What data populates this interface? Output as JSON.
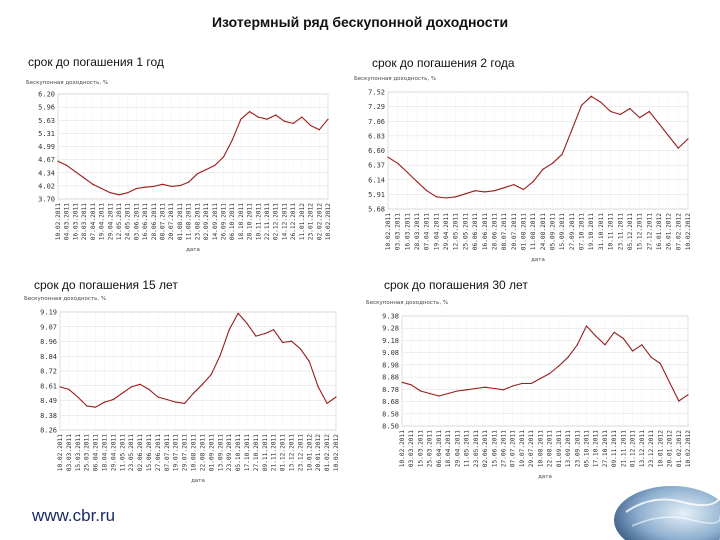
{
  "page": {
    "title": "Изотермный ряд бескупонной доходности",
    "footer": "www.cbr.ru"
  },
  "chart_data": [
    {
      "type": "line",
      "title": "срок до погашения 1 год",
      "ylabel": "Бескупонная доходность, %",
      "xlabel": "дата",
      "ylim": [
        3.7,
        6.2
      ],
      "yticks": [
        "6.20",
        "5.96",
        "5.63",
        "5.31",
        "4.99",
        "4.67",
        "4.34",
        "4.02",
        "3.70"
      ],
      "xticks": [
        "10.02.2011",
        "04.03.2011",
        "16.03.2011",
        "28.03.2011",
        "07.04.2011",
        "19.04.2011",
        "29.04.2011",
        "12.05.2011",
        "24.05.2011",
        "03.06.2011",
        "16.06.2011",
        "28.06.2011",
        "08.07.2011",
        "20.07.2011",
        "01.08.2011",
        "11.08.2011",
        "23.08.2011",
        "02.09.2011",
        "14.09.2011",
        "26.09.2011",
        "06.10.2011",
        "18.10.2011",
        "28.10.2011",
        "10.11.2011",
        "22.11.2011",
        "02.12.2011",
        "14.12.2011",
        "26.12.2011",
        "11.01.2012",
        "23.01.2012",
        "02.02.2012",
        "10.02.2012"
      ],
      "series": [
        {
          "values": [
            4.6,
            4.5,
            4.35,
            4.2,
            4.05,
            3.95,
            3.85,
            3.8,
            3.85,
            3.95,
            3.98,
            4.0,
            4.05,
            4.0,
            4.02,
            4.1,
            4.3,
            4.4,
            4.5,
            4.7,
            5.1,
            5.6,
            5.78,
            5.65,
            5.6,
            5.7,
            5.55,
            5.5,
            5.65,
            5.45,
            5.35,
            5.6
          ]
        }
      ]
    },
    {
      "type": "line",
      "title": "срок до погашения 2 года",
      "ylabel": "Бескупонная доходность, %",
      "xlabel": "дата",
      "ylim": [
        5.6,
        7.52
      ],
      "yticks": [
        "7.52",
        "7.29",
        "7.06",
        "6.83",
        "6.60",
        "6.37",
        "6.14",
        "5.91",
        "5.68"
      ],
      "xticks": [
        "10.02.2011",
        "03.03.2011",
        "16.03.2011",
        "28.03.2011",
        "07.04.2011",
        "19.04.2011",
        "29.04.2011",
        "12.05.2011",
        "25.05.2011",
        "06.06.2011",
        "16.06.2011",
        "28.06.2011",
        "08.07.2011",
        "20.07.2011",
        "01.08.2011",
        "11.08.2011",
        "24.08.2011",
        "05.09.2011",
        "15.09.2011",
        "27.09.2011",
        "07.10.2011",
        "19.10.2011",
        "31.10.2011",
        "10.11.2011",
        "23.11.2011",
        "05.12.2011",
        "15.12.2011",
        "27.12.2011",
        "16.01.2012",
        "26.01.2012",
        "07.02.2012",
        "10.02.2012"
      ],
      "series": [
        {
          "values": [
            6.45,
            6.35,
            6.2,
            6.05,
            5.9,
            5.8,
            5.78,
            5.8,
            5.85,
            5.9,
            5.88,
            5.9,
            5.95,
            6.0,
            5.92,
            6.05,
            6.25,
            6.35,
            6.5,
            6.9,
            7.3,
            7.45,
            7.35,
            7.2,
            7.15,
            7.25,
            7.1,
            7.2,
            7.0,
            6.8,
            6.6,
            6.75
          ]
        }
      ]
    },
    {
      "type": "line",
      "title": "срок до погашения 15 лет",
      "ylabel": "Бескупонная доходность, %",
      "xlabel": "дата",
      "ylim": [
        8.26,
        9.19
      ],
      "yticks": [
        "9.19",
        "9.07",
        "8.96",
        "8.84",
        "8.72",
        "8.61",
        "8.49",
        "8.38",
        "8.26"
      ],
      "xticks": [
        "10.02.2011",
        "03.03.2011",
        "15.03.2011",
        "25.03.2011",
        "06.04.2011",
        "18.04.2011",
        "29.04.2011",
        "11.05.2011",
        "23.05.2011",
        "02.06.2011",
        "15.06.2011",
        "27.06.2011",
        "07.07.2011",
        "19.07.2011",
        "29.07.2011",
        "10.08.2011",
        "22.08.2011",
        "01.09.2011",
        "13.09.2011",
        "23.09.2011",
        "05.10.2011",
        "17.10.2011",
        "27.10.2011",
        "09.11.2011",
        "21.11.2011",
        "01.12.2011",
        "13.12.2011",
        "23.12.2011",
        "10.01.2012",
        "20.01.2012",
        "01.02.2012",
        "10.02.2012"
      ],
      "series": [
        {
          "values": [
            8.6,
            8.58,
            8.52,
            8.45,
            8.44,
            8.48,
            8.5,
            8.55,
            8.6,
            8.62,
            8.58,
            8.52,
            8.5,
            8.48,
            8.47,
            8.55,
            8.62,
            8.7,
            8.85,
            9.05,
            9.18,
            9.1,
            9.0,
            9.02,
            9.05,
            8.95,
            8.96,
            8.9,
            8.8,
            8.6,
            8.47,
            8.52
          ]
        }
      ]
    },
    {
      "type": "line",
      "title": "срок до погашения 30 лет",
      "ylabel": "Бескупонная доходность, %",
      "xlabel": "дата",
      "ylim": [
        8.5,
        9.38
      ],
      "yticks": [
        "9.38",
        "9.28",
        "9.18",
        "9.08",
        "8.98",
        "8.88",
        "8.78",
        "8.68",
        "8.58",
        "8.50"
      ],
      "xticks": [
        "10.02.2011",
        "03.03.2011",
        "15.03.2011",
        "25.03.2011",
        "06.04.2011",
        "18.04.2011",
        "29.04.2011",
        "11.05.2011",
        "23.05.2011",
        "02.06.2011",
        "15.06.2011",
        "27.06.2011",
        "07.07.2011",
        "19.07.2011",
        "29.07.2011",
        "10.08.2011",
        "22.08.2011",
        "01.09.2011",
        "13.09.2011",
        "23.09.2011",
        "05.10.2011",
        "17.10.2011",
        "27.10.2011",
        "09.11.2011",
        "21.11.2011",
        "01.12.2011",
        "13.12.2011",
        "23.12.2011",
        "10.01.2012",
        "20.01.2012",
        "01.02.2012",
        "10.02.2012"
      ],
      "series": [
        {
          "values": [
            8.85,
            8.83,
            8.78,
            8.76,
            8.74,
            8.76,
            8.78,
            8.79,
            8.8,
            8.81,
            8.8,
            8.79,
            8.82,
            8.84,
            8.84,
            8.88,
            8.92,
            8.98,
            9.05,
            9.15,
            9.3,
            9.22,
            9.15,
            9.25,
            9.2,
            9.1,
            9.15,
            9.05,
            9.0,
            8.85,
            8.7,
            8.75
          ]
        }
      ]
    }
  ]
}
